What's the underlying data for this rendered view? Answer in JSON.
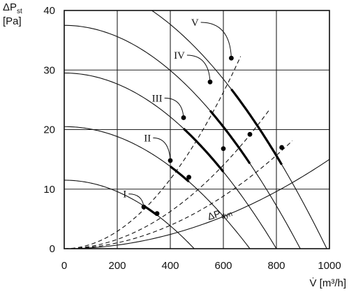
{
  "chart_data": {
    "type": "line",
    "title": "",
    "ylabel": {
      "symbol": "ΔP",
      "subscript": "st",
      "unit": "[Pa]"
    },
    "xlabel": "V̇ [m³/h]",
    "xlim": [
      0,
      1000
    ],
    "ylim": [
      0,
      40
    ],
    "xticks": [
      0,
      200,
      400,
      600,
      800,
      1000
    ],
    "yticks": [
      0,
      10,
      20,
      30,
      40
    ],
    "grid": true,
    "fan_curves": [
      {
        "label": "I",
        "x0": 0,
        "y0": 11.5,
        "x_end": 490
      },
      {
        "label": "II",
        "x0": 0,
        "y0": 20.5,
        "x_end": 700
      },
      {
        "label": "III",
        "x0": 0,
        "y0": 29.5,
        "x_end": 800
      },
      {
        "label": "IV",
        "x0": 0,
        "y0": 37.5,
        "x_end": 890
      },
      {
        "label": "V",
        "x0": 0,
        "y0": 45.0,
        "x_end": 990
      }
    ],
    "system_curves": [
      {
        "style": "dashed",
        "k": 7.3e-05,
        "x_end": 665
      },
      {
        "style": "dashed",
        "k": 3.9e-05,
        "x_end": 775
      },
      {
        "style": "dashed",
        "k": 2.45e-05,
        "x_end": 860
      },
      {
        "style": "solid",
        "k": 1.5e-05,
        "x_end": 1000
      }
    ],
    "operating_ranges": [
      {
        "label": "I",
        "points": [
          [
            300,
            7.0
          ],
          [
            350,
            5.9
          ]
        ]
      },
      {
        "label": "II",
        "points": [
          [
            400,
            14.8
          ],
          [
            470,
            12.0
          ]
        ]
      },
      {
        "label": "III",
        "points": [
          [
            450,
            22.0
          ],
          [
            600,
            16.8
          ]
        ]
      },
      {
        "label": "IV",
        "points": [
          [
            550,
            28.0
          ],
          [
            700,
            19.2
          ]
        ]
      },
      {
        "label": "V",
        "points": [
          [
            630,
            32.0
          ],
          [
            820,
            17.0
          ]
        ]
      }
    ],
    "annotations": [
      {
        "text": "I",
        "x": 235,
        "y": 9.2
      },
      {
        "text": "II",
        "x": 327,
        "y": 18.6
      },
      {
        "text": "III",
        "x": 370,
        "y": 25.3
      },
      {
        "text": "IV",
        "x": 455,
        "y": 32.5
      },
      {
        "text": "V",
        "x": 507,
        "y": 38.0
      }
    ],
    "dyn_label": {
      "symbol": "ΔP",
      "subscript": "dyn",
      "x": 545,
      "y": 4.8
    }
  }
}
